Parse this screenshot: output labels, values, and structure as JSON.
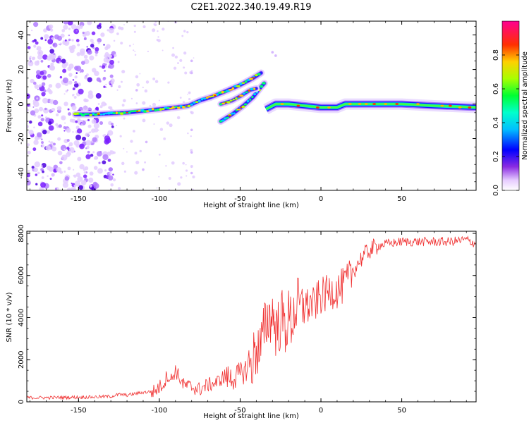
{
  "chart_data": [
    {
      "type": "heatmap",
      "title": "C2E1.2022.340.19.49.R19",
      "xlabel": "Height of straight line (km)",
      "ylabel": "Frequency (Hz)",
      "xlim": [
        -182,
        96
      ],
      "ylim": [
        -50,
        48
      ],
      "xticks": [
        -150,
        -100,
        -50,
        0,
        50
      ],
      "yticks": [
        -40,
        -20,
        0,
        20,
        40
      ],
      "colorbar": {
        "label": "Normalized spectral amplitude",
        "range": [
          0,
          1
        ],
        "ticks": [
          "0.0",
          "0.2",
          "0.4",
          "0.6",
          "0.8"
        ],
        "tick_values": [
          0.0,
          0.2,
          0.4,
          0.6,
          0.8
        ],
        "colors": [
          "#ffffff",
          "#d9b8ff",
          "#6a00ff",
          "#0000ff",
          "#00d5ff",
          "#00ff80",
          "#a0ff00",
          "#ffd000",
          "#ff3000",
          "#ff0080"
        ]
      },
      "ridge_primary": [
        {
          "x": -152,
          "y": -6
        },
        {
          "x": -140,
          "y": -6
        },
        {
          "x": -130,
          "y": -5.5
        },
        {
          "x": -120,
          "y": -5
        },
        {
          "x": -110,
          "y": -4
        },
        {
          "x": -100,
          "y": -3
        },
        {
          "x": -90,
          "y": -2
        },
        {
          "x": -82,
          "y": -1
        },
        {
          "x": -75,
          "y": 2
        },
        {
          "x": -68,
          "y": 4
        },
        {
          "x": -60,
          "y": 7
        },
        {
          "x": -50,
          "y": 11
        },
        {
          "x": -42,
          "y": 15
        },
        {
          "x": -37,
          "y": 18
        }
      ],
      "ridge_secondary": [
        {
          "x": -62,
          "y": -10
        },
        {
          "x": -55,
          "y": -6
        },
        {
          "x": -48,
          "y": -1
        },
        {
          "x": -42,
          "y": 4
        },
        {
          "x": -37,
          "y": 10
        },
        {
          "x": -35,
          "y": 12
        }
      ],
      "ridge_tertiary": [
        {
          "x": -62,
          "y": 0
        },
        {
          "x": -55,
          "y": 2
        },
        {
          "x": -49,
          "y": 5
        },
        {
          "x": -44,
          "y": 8
        },
        {
          "x": -40,
          "y": 9
        }
      ],
      "ridge_tail": [
        {
          "x": -34,
          "y": -3
        },
        {
          "x": -28,
          "y": 0
        },
        {
          "x": -20,
          "y": 0
        },
        {
          "x": -10,
          "y": -1
        },
        {
          "x": 0,
          "y": -2
        },
        {
          "x": 10,
          "y": -2
        },
        {
          "x": 15,
          "y": 0
        },
        {
          "x": 30,
          "y": 0
        },
        {
          "x": 50,
          "y": 0
        },
        {
          "x": 70,
          "y": -1
        },
        {
          "x": 96,
          "y": -2
        }
      ],
      "noise_region": [
        -182,
        -128
      ]
    },
    {
      "type": "line",
      "title": "",
      "xlabel": "Height of straight line (km)",
      "ylabel": "SNR (10 * v/v)",
      "xlim": [
        -182,
        96
      ],
      "ylim": [
        0,
        8100
      ],
      "xticks": [
        -150,
        -100,
        -50,
        0,
        50
      ],
      "yticks": [
        0,
        2000,
        4000,
        6000,
        8000
      ],
      "line_color": "#ff2a2a",
      "series": [
        {
          "name": "SNR",
          "x": [
            -182,
            -170,
            -160,
            -150,
            -140,
            -130,
            -125,
            -120,
            -110,
            -103,
            -100,
            -97,
            -95,
            -93,
            -90,
            -85,
            -80,
            -75,
            -70,
            -65,
            -60,
            -55,
            -50,
            -45,
            -42,
            -40,
            -38,
            -36,
            -34,
            -32,
            -30,
            -28,
            -26,
            -24,
            -22,
            -20,
            -18,
            -16,
            -14,
            -12,
            -10,
            -8,
            -6,
            -4,
            -2,
            0,
            3,
            6,
            10,
            14,
            18,
            22,
            26,
            30,
            35,
            40,
            50,
            60,
            70,
            80,
            90,
            96
          ],
          "y": [
            200,
            200,
            210,
            220,
            230,
            260,
            350,
            320,
            450,
            500,
            700,
            900,
            1300,
            1000,
            1500,
            800,
            700,
            600,
            800,
            900,
            1200,
            1100,
            1300,
            1600,
            2000,
            2600,
            2400,
            3000,
            3800,
            4000,
            4200,
            3500,
            3600,
            4000,
            3500,
            4000,
            3800,
            4400,
            4600,
            4300,
            4800,
            4500,
            4700,
            4500,
            4900,
            5000,
            5100,
            5300,
            5300,
            5500,
            5900,
            6500,
            6900,
            7200,
            7400,
            7500,
            7600,
            7600,
            7600,
            7600,
            7700,
            7500
          ]
        }
      ]
    }
  ]
}
